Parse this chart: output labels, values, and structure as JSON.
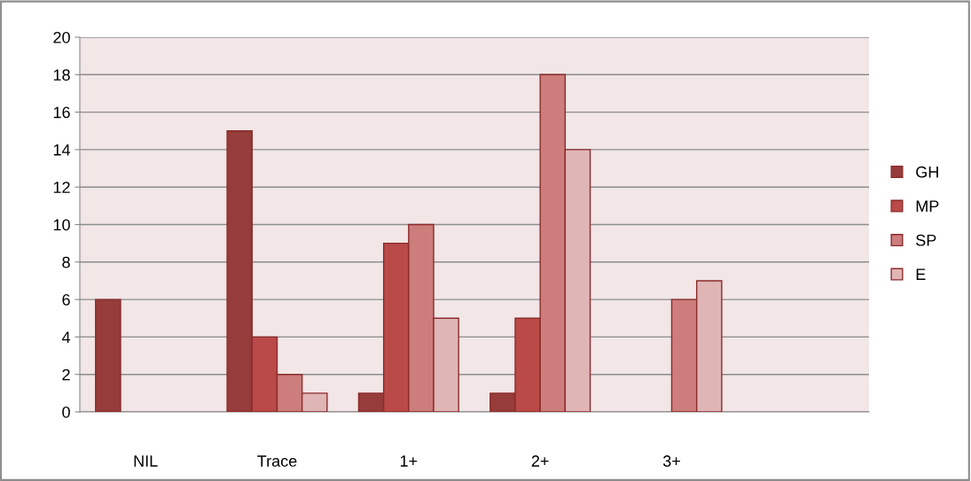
{
  "chart_data": {
    "type": "bar",
    "categories": [
      "NIL",
      "Trace",
      "1+",
      "2+",
      "3+",
      null
    ],
    "series": [
      {
        "name": "GH",
        "color": "#963c3b",
        "values": [
          6,
          15,
          1,
          1,
          null,
          null
        ]
      },
      {
        "name": "MP",
        "color": "#b94a48",
        "values": [
          null,
          4,
          9,
          5,
          null,
          null
        ]
      },
      {
        "name": "SP",
        "color": "#cc7d7c",
        "values": [
          null,
          2,
          10,
          18,
          6,
          null
        ]
      },
      {
        "name": "E",
        "color": "#e0b5b6",
        "values": [
          null,
          1,
          5,
          14,
          7,
          null
        ]
      }
    ],
    "ylim": [
      0,
      20
    ],
    "yticks": [
      0,
      2,
      4,
      6,
      8,
      10,
      12,
      14,
      16,
      18,
      20
    ],
    "grid": "y",
    "legend": "right"
  }
}
